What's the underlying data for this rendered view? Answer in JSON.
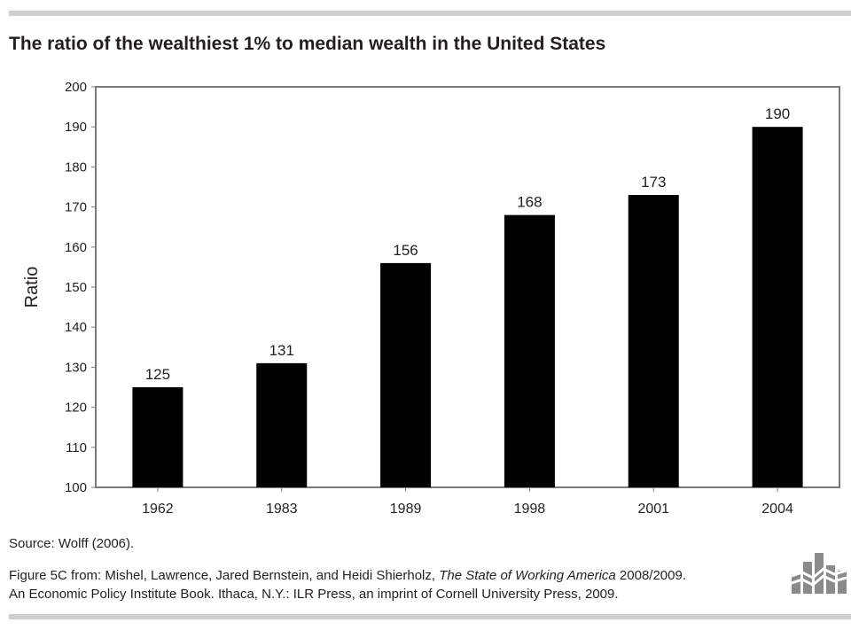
{
  "chart_data": {
    "type": "bar",
    "title": "The ratio of the wealthiest 1% to median wealth in the United States",
    "xlabel": "",
    "ylabel": "Ratio",
    "categories": [
      "1962",
      "1983",
      "1989",
      "1998",
      "2001",
      "2004"
    ],
    "values": [
      125,
      131,
      156,
      168,
      173,
      190
    ],
    "data_labels": [
      "125",
      "131",
      "156",
      "168",
      "173",
      "190"
    ],
    "ylim": [
      100,
      200
    ],
    "yticks": [
      "100",
      "110",
      "120",
      "130",
      "140",
      "150",
      "160",
      "170",
      "180",
      "190",
      "200"
    ],
    "grid": false,
    "legend": "none",
    "bar_color": "#000000",
    "frame_color": "#7a7a7a"
  },
  "footer": {
    "source": "Source: Wolff (2006).",
    "credit_prefix": "Figure 5C from: Mishel, Lawrence, Jared Bernstein, and Heidi Shierholz, ",
    "credit_book": "The State of Working America",
    "credit_suffix": " 2008/2009.",
    "credit_line2": "An Economic Policy Institute Book. Ithaca, N.Y.: ILR Press, an imprint of Cornell University Press, 2009."
  },
  "logo": {
    "icon": "epi-logo-icon"
  },
  "colors": {
    "rule": "#cfcfcf",
    "text": "#231f20",
    "logo": "#8a8a8a"
  }
}
